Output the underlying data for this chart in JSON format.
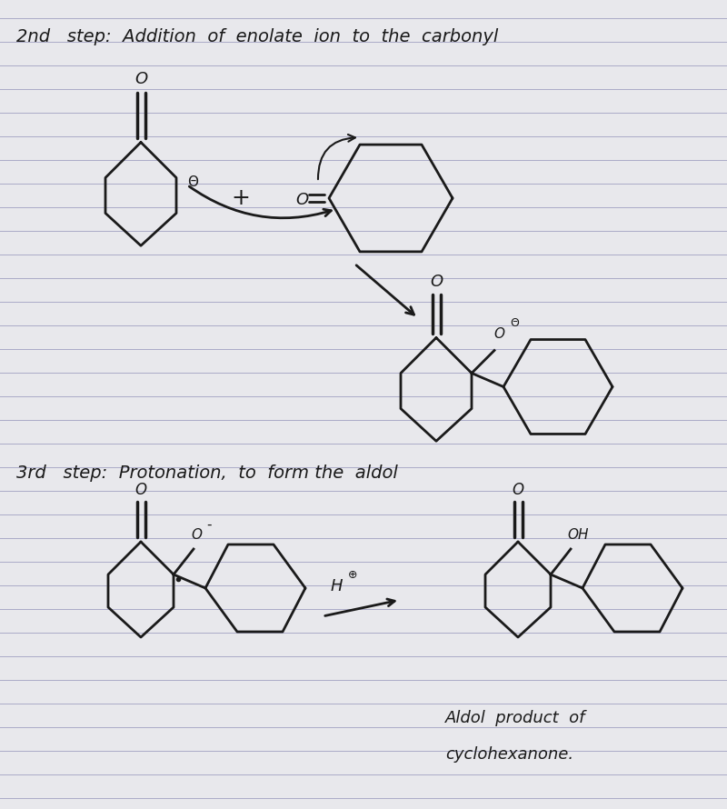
{
  "background_color": "#e8e8ec",
  "line_color": "#1a1a1a",
  "line_width": 2.0,
  "line_color_blue": "#9090b8",
  "title1": "2nd   step:  Addition  of  enolate  ion  to  the  carbonyl",
  "title2": "3rd   step:  Protonation,  to  form the  aldol",
  "footer_line1": "Aldol  product  of",
  "footer_line2": "cyclohexanone.",
  "title_fontsize": 14,
  "annotation_fontsize": 12,
  "fig_width": 8.0,
  "fig_height": 8.9
}
